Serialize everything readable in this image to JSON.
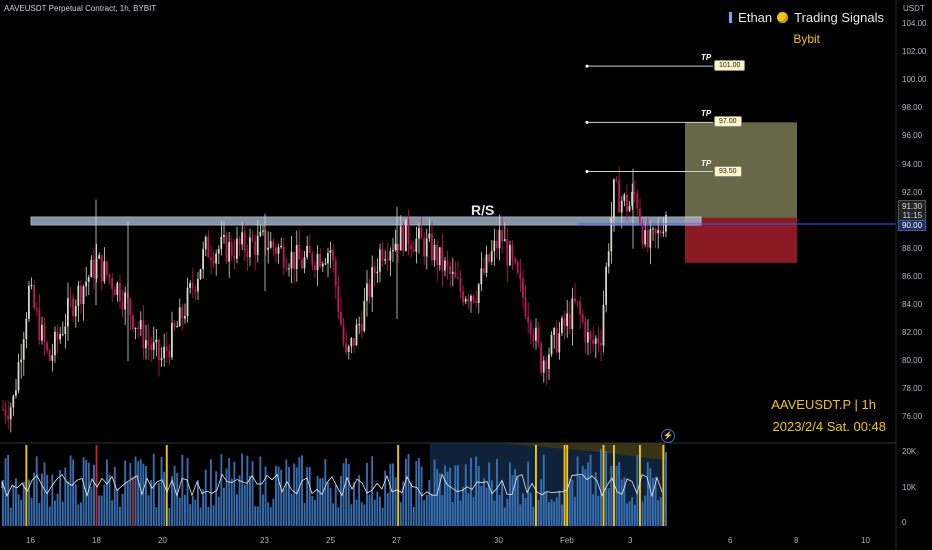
{
  "header": {
    "contract_title": "AAVEUSDT Perpetual Contract, 1h, BYBIT",
    "author": "Ethan",
    "channel": "Trading Signals",
    "exchange": "Bybit"
  },
  "watermark": {
    "symbol_tf": "AAVEUSDT.P | 1h",
    "datetime": "2023/2/4 Sat. 00:48"
  },
  "colors": {
    "candle_up": "#d7d7c8",
    "candle_down": "#c2185b",
    "rs_zone": "#b0c4de",
    "target_zone": "#7a7a55",
    "stop_zone": "#8b1a24",
    "price_line": "#2962ff",
    "volume": "#3d78c0",
    "highlight_bar": "#f0c419"
  },
  "chart_data": {
    "type": "candlestick",
    "symbol": "AAVEUSDT Perpetual Contract",
    "timeframe": "1h",
    "exchange": "BYBIT",
    "y_unit": "USDT",
    "y_ticks": [
      "104.00",
      "102.00",
      "100.00",
      "98.00",
      "96.00",
      "94.00",
      "92.00",
      "90.00",
      "88.00",
      "86.00",
      "84.00",
      "82.00",
      "80.00",
      "78.00",
      "76.00"
    ],
    "ylim": [
      75.5,
      105
    ],
    "x_ticks": [
      "16",
      "18",
      "20",
      "23",
      "25",
      "27",
      "30",
      "Feb",
      "3",
      "6",
      "8",
      "10"
    ],
    "volume_ticks": [
      "20K",
      "10K",
      "0"
    ],
    "last_price": "91.30",
    "countdown": "11:15",
    "current_level": "90.00",
    "rs_label": "R/S",
    "rs_zone": [
      89.8,
      90.4
    ],
    "take_profits": [
      {
        "tag": "TP",
        "price": "101.00"
      },
      {
        "tag": "TP",
        "price": "97.00"
      },
      {
        "tag": "TP",
        "price": "93.50"
      }
    ],
    "target_zone": [
      90.2,
      97.0
    ],
    "stop_zone": [
      87.0,
      90.2
    ]
  }
}
